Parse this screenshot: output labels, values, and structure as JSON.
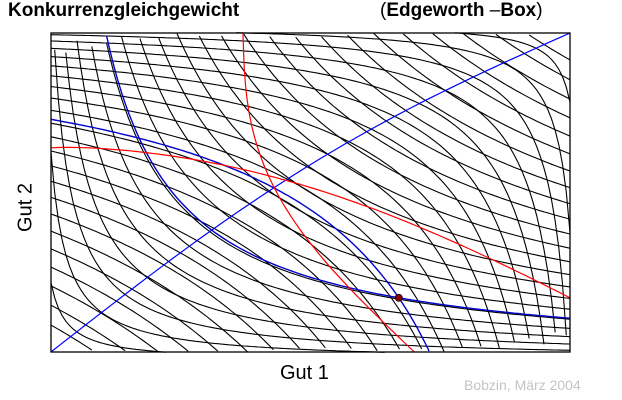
{
  "title": "Konkurrenzgleichgewicht",
  "subtitle": {
    "open": "(",
    "part1": "Edgeworth",
    "dash": " –",
    "part2": "Box",
    "close": ")"
  },
  "axes": {
    "xlabel": "Gut 1",
    "ylabel": "Gut 2"
  },
  "credit": "Bobzin, März 2004",
  "colors": {
    "indifference_curves": "#000000",
    "highlighted_curves": "#0000cc",
    "offer_curves": "#ff0000",
    "contract_curve": "#0000ff",
    "equilibrium_point": "#8b0000"
  },
  "chart_data": {
    "type": "line",
    "description_elements": [
      "indifference-curves-A",
      "indifference-curves-B",
      "contract-curve",
      "offer-curves",
      "equilibrium-point"
    ],
    "indifference_A_levels": 24,
    "indifference_B_levels": 24,
    "equilibrium": {
      "x": 0.67,
      "y": 0.17
    }
  }
}
